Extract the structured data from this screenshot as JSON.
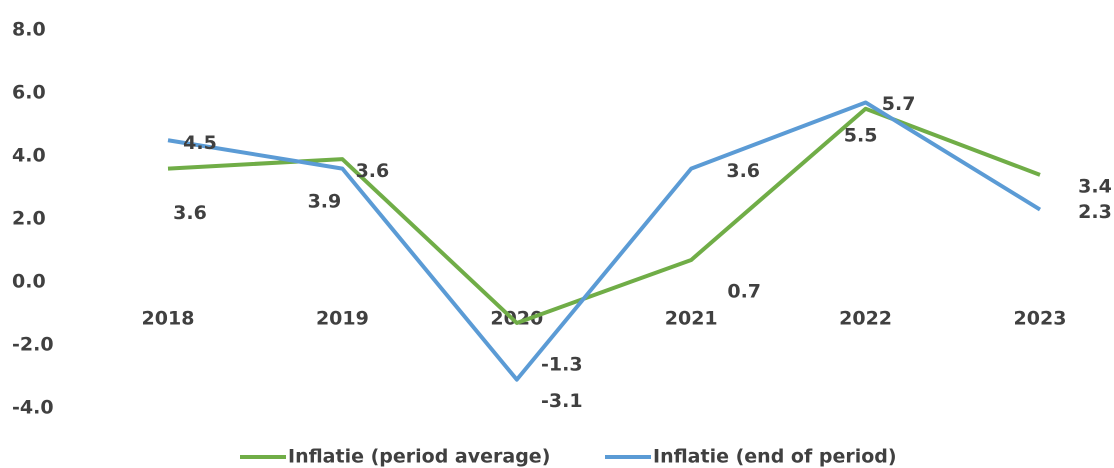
{
  "chart_data": {
    "type": "line",
    "categories": [
      "2018",
      "2019",
      "2020",
      "2021",
      "2022",
      "2023"
    ],
    "series": [
      {
        "name": "Inflatie (period average)",
        "color": "#70ad47",
        "values": [
          3.6,
          3.9,
          -1.3,
          0.7,
          5.5,
          3.4
        ]
      },
      {
        "name": "Inflatie (end of period)",
        "color": "#5b9bd5",
        "values": [
          4.5,
          3.6,
          -3.1,
          3.6,
          5.7,
          2.3
        ]
      }
    ],
    "ylim": [
      -4,
      8
    ],
    "yticks": [
      {
        "value": -4,
        "label": "-4.0"
      },
      {
        "value": -2,
        "label": "-2.0"
      },
      {
        "value": 0,
        "label": "0.0"
      },
      {
        "value": 2,
        "label": "2.0"
      },
      {
        "value": 4,
        "label": "4.0"
      },
      {
        "value": 6,
        "label": "6.0"
      },
      {
        "value": 8,
        "label": "8.0"
      }
    ],
    "grid": false,
    "legend": "bottom"
  }
}
